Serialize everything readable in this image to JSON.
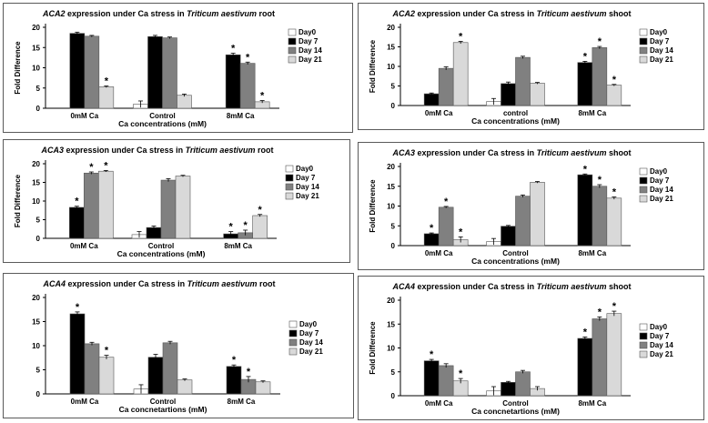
{
  "chart_data": [
    {
      "type": "bar",
      "title_gene": "ACA2",
      "title_mid": " expression under Ca stress in ",
      "title_species": "Triticum aestivum",
      "title_tissue": " root",
      "categories": [
        "0mM Ca",
        "Control",
        "8mM Ca"
      ],
      "series": [
        {
          "name": "Day0",
          "values": [
            0,
            1,
            0
          ],
          "errors": [
            0,
            0.8,
            0
          ],
          "sig": [
            false,
            false,
            false
          ]
        },
        {
          "name": "Day 7",
          "values": [
            18.5,
            17.7,
            13.2
          ],
          "errors": [
            0.3,
            0.3,
            0.4
          ],
          "sig": [
            false,
            false,
            true
          ]
        },
        {
          "name": "Day 14",
          "values": [
            17.8,
            17.4,
            11.1
          ],
          "errors": [
            0.2,
            0.2,
            0.3
          ],
          "sig": [
            false,
            false,
            true
          ]
        },
        {
          "name": "Day 21",
          "values": [
            5.3,
            3.2,
            1.6
          ],
          "errors": [
            0.2,
            0.3,
            0.3
          ],
          "sig": [
            true,
            false,
            true
          ]
        }
      ],
      "xlabel": "Ca concentrations (mM)",
      "ylabel": "Fold Difference",
      "ylim": [
        0,
        20
      ],
      "yticks": [
        0,
        5,
        10,
        15,
        20
      ]
    },
    {
      "type": "bar",
      "title_gene": "ACA2",
      "title_mid": " expression under Ca stress in ",
      "title_species": "Triticum aestivum",
      "title_tissue": " shoot",
      "categories": [
        "0mM Ca",
        "control",
        "8mM Ca"
      ],
      "series": [
        {
          "name": "Day0",
          "values": [
            0,
            1,
            0
          ],
          "errors": [
            0,
            0.8,
            0
          ],
          "sig": [
            false,
            false,
            false
          ]
        },
        {
          "name": "Day 7",
          "values": [
            3.0,
            5.6,
            11.0
          ],
          "errors": [
            0.2,
            0.4,
            0.3
          ],
          "sig": [
            false,
            false,
            true
          ]
        },
        {
          "name": "Day 14",
          "values": [
            9.5,
            12.3,
            14.8
          ],
          "errors": [
            0.4,
            0.3,
            0.3
          ],
          "sig": [
            false,
            false,
            true
          ]
        },
        {
          "name": "Day 21",
          "values": [
            16.1,
            5.7,
            5.2
          ],
          "errors": [
            0.3,
            0.2,
            0.2
          ],
          "sig": [
            true,
            false,
            true
          ]
        }
      ],
      "xlabel": "Ca concentrations (mM)",
      "ylabel": "Fold Difference",
      "ylim": [
        0,
        20
      ],
      "yticks": [
        0,
        5,
        10,
        15,
        20
      ]
    },
    {
      "type": "bar",
      "title_gene": "ACA3",
      "title_mid": " expression under Ca stress in ",
      "title_species": "Triticum aestivum",
      "title_tissue": " root",
      "categories": [
        "0mM Ca",
        "Control",
        "8mM Ca"
      ],
      "series": [
        {
          "name": "Day0",
          "values": [
            0,
            1,
            0
          ],
          "errors": [
            0,
            0.8,
            0
          ],
          "sig": [
            false,
            false,
            false
          ]
        },
        {
          "name": "Day 7",
          "values": [
            8.3,
            2.9,
            1.2
          ],
          "errors": [
            0.3,
            0.4,
            0.6
          ],
          "sig": [
            true,
            false,
            true
          ]
        },
        {
          "name": "Day 14",
          "values": [
            17.5,
            15.6,
            1.5
          ],
          "errors": [
            0.3,
            0.4,
            0.7
          ],
          "sig": [
            true,
            false,
            true
          ]
        },
        {
          "name": "Day 21",
          "values": [
            18.0,
            16.7,
            6.1
          ],
          "errors": [
            0.2,
            0.2,
            0.3
          ],
          "sig": [
            true,
            false,
            true
          ]
        }
      ],
      "xlabel": "Ca concentrations (mM)",
      "ylabel": "Fold Difference",
      "ylim": [
        0,
        20
      ],
      "yticks": [
        0,
        5,
        10,
        15,
        20
      ]
    },
    {
      "type": "bar",
      "title_gene": "ACA3",
      "title_mid": " expression under Ca stress in ",
      "title_species": "Triticum aestivum",
      "title_tissue": " shoot",
      "categories": [
        "0mM Ca",
        "Control",
        "8mM Ca"
      ],
      "series": [
        {
          "name": "Day0",
          "values": [
            0,
            1,
            0
          ],
          "errors": [
            0,
            0.8,
            0
          ],
          "sig": [
            false,
            false,
            false
          ]
        },
        {
          "name": "Day 7",
          "values": [
            3.0,
            4.9,
            17.9
          ],
          "errors": [
            0.2,
            0.2,
            0.2
          ],
          "sig": [
            true,
            false,
            true
          ]
        },
        {
          "name": "Day 14",
          "values": [
            9.7,
            12.5,
            15.0
          ],
          "errors": [
            0.2,
            0.3,
            0.4
          ],
          "sig": [
            true,
            false,
            true
          ]
        },
        {
          "name": "Day 21",
          "values": [
            1.5,
            16.0,
            12.0
          ],
          "errors": [
            0.7,
            0.2,
            0.3
          ],
          "sig": [
            true,
            false,
            true
          ]
        }
      ],
      "xlabel": "Ca concentrations (mM)",
      "ylabel": "Fold Difference",
      "ylim": [
        0,
        20
      ],
      "yticks": [
        0,
        5,
        10,
        15,
        20
      ]
    },
    {
      "type": "bar",
      "title_gene": "ACA4",
      "title_mid": " expression under Ca stress in ",
      "title_species": "Triticum aestivum",
      "title_tissue": " root",
      "categories": [
        "0mM Ca",
        "Control",
        "8mM Ca"
      ],
      "series": [
        {
          "name": "Day0",
          "values": [
            0,
            1,
            0
          ],
          "errors": [
            0,
            0.9,
            0
          ],
          "sig": [
            false,
            false,
            false
          ]
        },
        {
          "name": "Day 7",
          "values": [
            16.6,
            7.6,
            5.7
          ],
          "errors": [
            0.4,
            0.6,
            0.3
          ],
          "sig": [
            true,
            false,
            true
          ]
        },
        {
          "name": "Day 14",
          "values": [
            10.4,
            10.6,
            3.0
          ],
          "errors": [
            0.3,
            0.3,
            0.6
          ],
          "sig": [
            false,
            false,
            true
          ]
        },
        {
          "name": "Day 21",
          "values": [
            7.6,
            2.9,
            2.5
          ],
          "errors": [
            0.4,
            0.2,
            0.2
          ],
          "sig": [
            true,
            false,
            false
          ]
        }
      ],
      "xlabel": "Ca concnetartions (mM)",
      "ylabel": "",
      "ylim": [
        0,
        20
      ],
      "yticks": [
        0,
        5,
        10,
        15,
        20
      ]
    },
    {
      "type": "bar",
      "title_gene": "ACA4",
      "title_mid": " expression under Ca stress in ",
      "title_species": "Triticum aestivum",
      "title_tissue": " shoot",
      "categories": [
        "0mM Ca",
        "Control",
        "8mM Ca"
      ],
      "series": [
        {
          "name": "Day0",
          "values": [
            0,
            1,
            0
          ],
          "errors": [
            0,
            0.9,
            0
          ],
          "sig": [
            false,
            false,
            false
          ]
        },
        {
          "name": "Day 7",
          "values": [
            7.3,
            2.8,
            12.0
          ],
          "errors": [
            0.3,
            0.2,
            0.3
          ],
          "sig": [
            true,
            false,
            true
          ]
        },
        {
          "name": "Day 14",
          "values": [
            6.3,
            5.0,
            16.1
          ],
          "errors": [
            0.4,
            0.3,
            0.4
          ],
          "sig": [
            false,
            false,
            true
          ]
        },
        {
          "name": "Day 21",
          "values": [
            3.1,
            1.5,
            17.2
          ],
          "errors": [
            0.5,
            0.4,
            0.5
          ],
          "sig": [
            true,
            false,
            true
          ]
        }
      ],
      "xlabel": "Ca concnetartions (mM)",
      "ylabel": "Fold Difference",
      "ylim": [
        0,
        20
      ],
      "yticks": [
        0,
        5,
        10,
        15,
        20
      ]
    }
  ],
  "series_colors": [
    "#ffffff",
    "#000000",
    "#808080",
    "#d9d9d9"
  ]
}
